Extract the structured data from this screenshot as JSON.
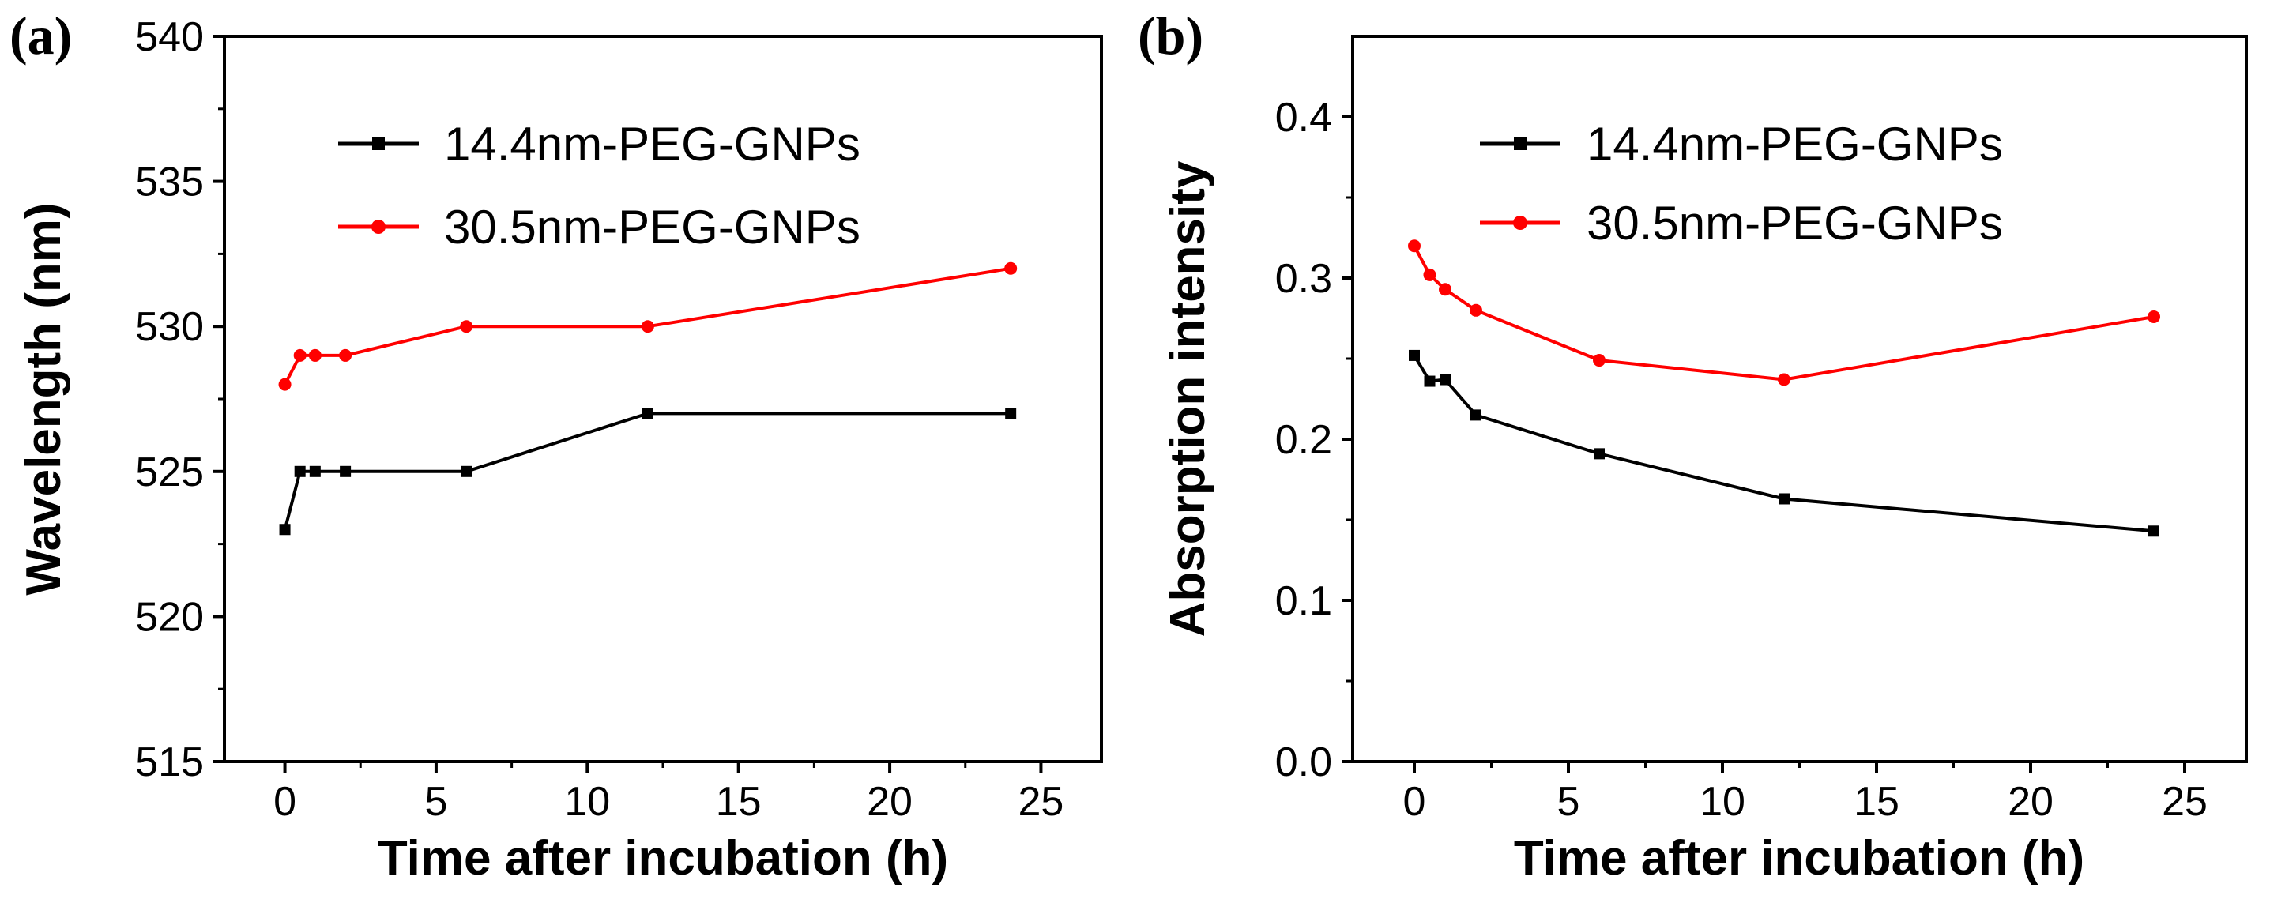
{
  "chart_data": [
    {
      "type": "line",
      "panel_label": "(a)",
      "title": "",
      "xlabel": "Time after incubation (h)",
      "ylabel": "Wavelength (nm)",
      "xlim": [
        -2,
        27
      ],
      "ylim": [
        515,
        540
      ],
      "xticks": [
        0,
        5,
        10,
        15,
        20,
        25
      ],
      "xtick_labels": [
        "0",
        "5",
        "10",
        "15",
        "20",
        "25"
      ],
      "yticks": [
        515,
        520,
        525,
        530,
        535,
        540
      ],
      "ytick_labels": [
        "515",
        "520",
        "525",
        "530",
        "535",
        "540"
      ],
      "legend_position": "top-left",
      "series": [
        {
          "name": "14.4nm-PEG-GNPs",
          "color": "#000000",
          "marker": "square",
          "x": [
            0,
            0.5,
            1,
            2,
            6,
            12,
            24
          ],
          "values": [
            523,
            525,
            525,
            525,
            525,
            527,
            527
          ]
        },
        {
          "name": "30.5nm-PEG-GNPs",
          "color": "#ff0000",
          "marker": "circle",
          "x": [
            0,
            0.5,
            1,
            2,
            6,
            12,
            24
          ],
          "values": [
            528,
            529,
            529,
            529,
            530,
            530,
            532
          ]
        }
      ]
    },
    {
      "type": "line",
      "panel_label": "(b)",
      "title": "",
      "xlabel": "Time after incubation (h)",
      "ylabel": "Absorption intensity",
      "xlim": [
        -2,
        27
      ],
      "ylim": [
        0,
        0.45
      ],
      "xticks": [
        0,
        5,
        10,
        15,
        20,
        25
      ],
      "xtick_labels": [
        "0",
        "5",
        "10",
        "15",
        "20",
        "25"
      ],
      "yticks": [
        0,
        0.1,
        0.2,
        0.3,
        0.4
      ],
      "ytick_labels": [
        "0.0",
        "0.1",
        "0.2",
        "0.3",
        "0.4"
      ],
      "legend_position": "top-center",
      "series": [
        {
          "name": "14.4nm-PEG-GNPs",
          "color": "#000000",
          "marker": "square",
          "x": [
            0,
            0.5,
            1,
            2,
            6,
            12,
            24
          ],
          "values": [
            0.252,
            0.236,
            0.237,
            0.215,
            0.191,
            0.163,
            0.143
          ]
        },
        {
          "name": "30.5nm-PEG-GNPs",
          "color": "#ff0000",
          "marker": "circle",
          "x": [
            0,
            0.5,
            1,
            2,
            6,
            12,
            24
          ],
          "values": [
            0.32,
            0.302,
            0.293,
            0.28,
            0.249,
            0.237,
            0.276
          ]
        }
      ]
    }
  ]
}
